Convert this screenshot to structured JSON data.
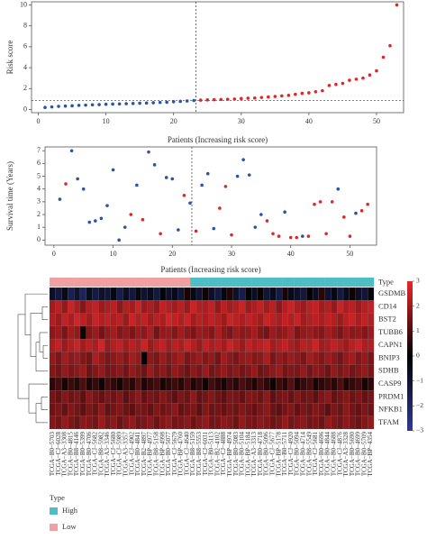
{
  "chart_data": [
    {
      "type": "scatter",
      "ylabel": "Risk score",
      "xlabel": "Patients (Increasing risk score)",
      "x": [
        1,
        2,
        3,
        4,
        5,
        6,
        7,
        8,
        9,
        10,
        11,
        12,
        13,
        14,
        15,
        16,
        17,
        18,
        19,
        20,
        21,
        22,
        23,
        24,
        25,
        26,
        27,
        28,
        29,
        30,
        31,
        32,
        33,
        34,
        35,
        36,
        37,
        38,
        39,
        40,
        41,
        42,
        43,
        44,
        45,
        46,
        47,
        48,
        49,
        50,
        51,
        52,
        53
      ],
      "values": [
        0.2,
        0.25,
        0.3,
        0.33,
        0.36,
        0.4,
        0.42,
        0.45,
        0.47,
        0.5,
        0.52,
        0.54,
        0.56,
        0.58,
        0.6,
        0.62,
        0.65,
        0.68,
        0.7,
        0.74,
        0.78,
        0.82,
        0.86,
        0.9,
        0.92,
        0.94,
        0.96,
        0.98,
        1.0,
        1.05,
        1.08,
        1.1,
        1.15,
        1.2,
        1.25,
        1.3,
        1.35,
        1.45,
        1.55,
        1.6,
        1.7,
        1.8,
        2.3,
        2.4,
        2.5,
        2.8,
        2.9,
        3.0,
        3.3,
        3.7,
        5.0,
        6.1,
        10.0
      ],
      "colors": [
        "#2b54a3",
        "#2b54a3",
        "#2b54a3",
        "#2b54a3",
        "#2b54a3",
        "#2b54a3",
        "#2b54a3",
        "#2b54a3",
        "#2b54a3",
        "#2b54a3",
        "#2b54a3",
        "#2b54a3",
        "#2b54a3",
        "#2b54a3",
        "#2b54a3",
        "#2b54a3",
        "#2b54a3",
        "#2b54a3",
        "#2b54a3",
        "#2b54a3",
        "#2b54a3",
        "#2b54a3",
        "#2b54a3",
        "#e0262b",
        "#e0262b",
        "#e0262b",
        "#e0262b",
        "#e0262b",
        "#e0262b",
        "#e0262b",
        "#e0262b",
        "#e0262b",
        "#e0262b",
        "#e0262b",
        "#e0262b",
        "#e0262b",
        "#e0262b",
        "#e0262b",
        "#e0262b",
        "#e0262b",
        "#e0262b",
        "#e0262b",
        "#e0262b",
        "#e0262b",
        "#e0262b",
        "#e0262b",
        "#e0262b",
        "#e0262b",
        "#e0262b",
        "#e0262b",
        "#e0262b",
        "#e0262b",
        "#e0262b"
      ],
      "xlim": [
        -1,
        54
      ],
      "ylim": [
        -0.3,
        10.3
      ],
      "xticks": [
        0,
        10,
        20,
        30,
        40,
        50
      ],
      "yticks": [
        0,
        2,
        4,
        6,
        8,
        10
      ],
      "vline": 23.3,
      "hline": 0.88
    },
    {
      "type": "scatter",
      "ylabel": "Survival time (Years)",
      "xlabel": "Patients (Increasing risk score)",
      "x": [
        1,
        2,
        3,
        4,
        5,
        6,
        7,
        8,
        9,
        10,
        11,
        12,
        13,
        14,
        15,
        16,
        17,
        18,
        19,
        20,
        21,
        22,
        23,
        24,
        25,
        26,
        27,
        28,
        29,
        30,
        31,
        32,
        33,
        34,
        35,
        36,
        37,
        38,
        39,
        40,
        41,
        42,
        43,
        44,
        45,
        46,
        47,
        48,
        49,
        50,
        51,
        52,
        53
      ],
      "values": [
        3.2,
        4.4,
        7.0,
        4.8,
        4.0,
        1.4,
        1.5,
        1.7,
        2.7,
        5.5,
        0.0,
        1.0,
        2.0,
        4.3,
        1.6,
        6.9,
        5.9,
        0.5,
        4.9,
        4.8,
        0.8,
        3.5,
        2.9,
        0.7,
        4.3,
        5.2,
        0.9,
        2.5,
        4.2,
        0.4,
        5.0,
        6.3,
        5.1,
        1.0,
        2.0,
        1.5,
        0.5,
        0.3,
        2.2,
        0.2,
        0.2,
        0.3,
        0.3,
        2.8,
        3.0,
        0.5,
        3.0,
        4.0,
        1.8,
        0.3,
        2.1,
        2.3,
        2.8
      ],
      "colors": [
        "#2b54a3",
        "#e0262b",
        "#2b54a3",
        "#2b54a3",
        "#2b54a3",
        "#2b54a3",
        "#2b54a3",
        "#2b54a3",
        "#2b54a3",
        "#2b54a3",
        "#2b54a3",
        "#2b54a3",
        "#e0262b",
        "#2b54a3",
        "#e0262b",
        "#2b54a3",
        "#2b54a3",
        "#e0262b",
        "#2b54a3",
        "#2b54a3",
        "#2b54a3",
        "#e0262b",
        "#2b54a3",
        "#e0262b",
        "#2b54a3",
        "#2b54a3",
        "#2b54a3",
        "#e0262b",
        "#e0262b",
        "#e0262b",
        "#2b54a3",
        "#2b54a3",
        "#2b54a3",
        "#2b54a3",
        "#2b54a3",
        "#e0262b",
        "#e0262b",
        "#e0262b",
        "#2b54a3",
        "#e0262b",
        "#e0262b",
        "#2b54a3",
        "#e0262b",
        "#e0262b",
        "#e0262b",
        "#e0262b",
        "#e0262b",
        "#2b54a3",
        "#e0262b",
        "#e0262b",
        "#2b54a3",
        "#e0262b",
        "#e0262b"
      ],
      "xlim": [
        -1.5,
        54.5
      ],
      "ylim": [
        -0.4,
        7.3
      ],
      "xticks": [
        0,
        10,
        20,
        30,
        40,
        50
      ],
      "yticks": [
        0,
        1,
        2,
        3,
        4,
        5,
        6,
        7
      ],
      "vline": 23.3
    },
    {
      "type": "heatmap",
      "annotation_title": "Type",
      "rows": [
        "GSDMB",
        "CD14",
        "BST2",
        "TUBB6",
        "CAPN1",
        "BNIP3",
        "SDHB",
        "CASP9",
        "PRDM1",
        "NFKB1",
        "TFAM"
      ],
      "columns": [
        "TCGA−B0−5703",
        "TCGA−CJ−6028",
        "TCGA−A3−3308",
        "TCGA−B0−4815",
        "TCGA−B8−4146",
        "TCGA−B0−5399",
        "TCGA−B0−4706",
        "TCGA−CJ−5682",
        "TCGA−B8−5982",
        "TCGA−A3−3346",
        "TCGA−CJ−5680",
        "TCGA−CJ−5989",
        "TCGA−A3−3357",
        "TCGA−CJ−4902",
        "TCGA−B0−4841",
        "TCGA−B2−4897",
        "TCGA−BP−4977",
        "TCGA−B8−5158",
        "TCGA−BP−4998",
        "TCGA−B0−5077",
        "TCGA−CJ−5679",
        "TCGA−BP−4760",
        "TCGA−CJ−4640",
        "TCGA−B8−5159",
        "TCGA−B8−5553",
        "TCGA−CJ−6031",
        "TCGA−B0−5113",
        "TCGA−B2−4102",
        "TCGA−CJ−4888",
        "TCGA−BP−4974",
        "TCGA−B0−5083",
        "TCGA−B0−5104",
        "TCGA−BP−5184",
        "TCGA−A3−3313",
        "TCGA−B0−4718",
        "TCGA−B0−5096",
        "TCGA−CJ−5677",
        "TCGA−BP−5178",
        "TCGA−B0−5711",
        "TCGA−CJ−4920",
        "TCGA−B0−5094",
        "TCGA−B0−4714",
        "TCGA−B8−5549",
        "TCGA−CJ−5681",
        "TCGA−B0−4696",
        "TCGA−B0−4844",
        "TCGA−B0−4688",
        "TCGA−CJ−4876",
        "TCGA−A3−3328",
        "TCGA−B0−5690",
        "TCGA−B0−4699",
        "TCGA−B0−5709",
        "TCGA−BP−4354"
      ],
      "column_type": [
        "Low",
        "Low",
        "Low",
        "Low",
        "Low",
        "Low",
        "Low",
        "Low",
        "Low",
        "Low",
        "Low",
        "Low",
        "Low",
        "Low",
        "Low",
        "Low",
        "Low",
        "Low",
        "Low",
        "Low",
        "Low",
        "Low",
        "Low",
        "High",
        "High",
        "High",
        "High",
        "High",
        "High",
        "High",
        "High",
        "High",
        "High",
        "High",
        "High",
        "High",
        "High",
        "High",
        "High",
        "High",
        "High",
        "High",
        "High",
        "High",
        "High",
        "High",
        "High",
        "High",
        "High",
        "High",
        "High",
        "High",
        "High"
      ],
      "type_legend": [
        {
          "name": "High",
          "color": "#4dbdc6"
        },
        {
          "name": "Low",
          "color": "#f0a0a0"
        }
      ],
      "values": [
        [
          -0.8,
          -1.2,
          -0.5,
          -1.6,
          -1.0,
          -1.8,
          -0.6,
          -1.4,
          -0.9,
          -1.1,
          -0.3,
          -1.5,
          -0.7,
          -1.2,
          -0.4,
          -1.0,
          -0.6,
          -1.3,
          -0.2,
          -0.9,
          -0.5,
          -1.1,
          0.3,
          -0.4,
          -1.0,
          0.2,
          -0.8,
          -1.3,
          -0.3,
          0.4,
          -0.9,
          -1.5,
          -0.2,
          -0.7,
          0.1,
          -1.1,
          -0.6,
          -1.4,
          0.3,
          -0.5,
          -0.9,
          -1.2,
          -0.1,
          -0.7,
          0.5,
          -1.0,
          -0.4,
          -1.3,
          -0.6,
          0.2,
          -0.8,
          -1.1,
          -0.3
        ],
        [
          2.1,
          2.4,
          1.9,
          2.6,
          2.2,
          1.7,
          2.3,
          2.5,
          2.0,
          2.2,
          2.4,
          1.8,
          2.3,
          2.1,
          2.6,
          2.0,
          2.2,
          1.9,
          2.5,
          2.3,
          2.1,
          2.4,
          2.0,
          2.6,
          2.3,
          2.2,
          2.5,
          1.9,
          2.4,
          2.1,
          2.3,
          2.6,
          2.0,
          2.2,
          2.5,
          2.1,
          2.4,
          1.8,
          2.3,
          2.6,
          2.2,
          2.0,
          2.4,
          2.5,
          2.1,
          2.3,
          1.9,
          2.6,
          2.2,
          2.4,
          2.0,
          2.3,
          2.5
        ],
        [
          2.3,
          2.0,
          2.5,
          2.2,
          2.7,
          2.4,
          2.1,
          2.6,
          2.3,
          2.5,
          2.2,
          2.4,
          2.0,
          2.6,
          2.3,
          2.5,
          2.1,
          2.4,
          2.2,
          2.7,
          2.5,
          2.3,
          2.6,
          2.1,
          2.4,
          2.2,
          2.5,
          2.3,
          2.0,
          2.6,
          2.4,
          2.2,
          2.5,
          2.3,
          2.1,
          2.6,
          2.4,
          2.2,
          2.5,
          2.3,
          2.6,
          2.1,
          2.3,
          2.4,
          2.2,
          2.5,
          2.3,
          2.0,
          2.4,
          2.6,
          2.2,
          2.5,
          2.3
        ],
        [
          1.8,
          2.0,
          1.6,
          2.1,
          1.9,
          0.2,
          1.7,
          2.0,
          1.5,
          1.9,
          2.1,
          1.7,
          1.9,
          1.6,
          2.0,
          1.8,
          2.2,
          1.5,
          1.9,
          2.0,
          1.7,
          2.1,
          1.8,
          1.6,
          2.0,
          1.9,
          1.7,
          2.2,
          1.8,
          1.6,
          2.0,
          1.8,
          1.9,
          2.1,
          1.7,
          1.5,
          2.0,
          1.8,
          1.9,
          2.2,
          1.6,
          1.9,
          2.0,
          1.8,
          1.7,
          2.1,
          1.9,
          1.6,
          2.0,
          1.8,
          1.9,
          1.7,
          2.0
        ],
        [
          2.2,
          2.5,
          2.0,
          2.3,
          2.6,
          2.1,
          2.4,
          2.2,
          2.7,
          2.0,
          2.3,
          2.5,
          2.1,
          2.4,
          2.2,
          2.6,
          2.0,
          2.3,
          2.5,
          2.1,
          2.4,
          2.2,
          2.6,
          2.3,
          2.0,
          2.5,
          2.2,
          2.4,
          2.1,
          2.6,
          2.3,
          2.0,
          2.5,
          2.2,
          2.4,
          2.6,
          2.1,
          2.3,
          2.5,
          2.2,
          2.0,
          2.4,
          2.3,
          2.6,
          2.1,
          2.2,
          2.5,
          2.3,
          2.0,
          2.4,
          2.6,
          2.2,
          2.3
        ],
        [
          1.9,
          1.6,
          2.1,
          1.8,
          2.0,
          1.7,
          1.5,
          2.2,
          1.9,
          1.6,
          1.8,
          2.0,
          1.7,
          2.1,
          1.9,
          0.1,
          1.8,
          1.6,
          2.0,
          1.7,
          1.9,
          2.1,
          1.6,
          1.8,
          2.0,
          1.7,
          1.9,
          1.5,
          2.1,
          1.8,
          1.6,
          1.9,
          2.0,
          1.7,
          1.8,
          2.2,
          1.6,
          1.9,
          1.7,
          2.0,
          1.8,
          1.6,
          2.1,
          1.9,
          1.7,
          2.0,
          1.8,
          1.5,
          1.9,
          2.1,
          1.7,
          1.9,
          1.6
        ],
        [
          1.7,
          1.5,
          1.9,
          1.6,
          1.8,
          2.0,
          1.4,
          1.7,
          1.9,
          1.5,
          1.6,
          1.8,
          1.5,
          1.9,
          1.7,
          1.4,
          2.0,
          1.6,
          1.8,
          1.5,
          1.9,
          1.7,
          1.4,
          1.8,
          1.6,
          2.0,
          1.5,
          1.7,
          1.9,
          1.6,
          1.8,
          1.5,
          1.7,
          1.9,
          1.4,
          1.6,
          1.8,
          2.0,
          1.5,
          1.7,
          1.6,
          1.9,
          1.5,
          1.8,
          1.7,
          1.4,
          1.9,
          1.6,
          1.8,
          1.5,
          1.7,
          1.9,
          1.6
        ],
        [
          0.6,
          0.9,
          0.3,
          0.8,
          0.5,
          1.0,
          0.4,
          0.7,
          0.2,
          0.9,
          0.6,
          0.3,
          0.8,
          0.5,
          1.1,
          0.4,
          0.7,
          0.9,
          0.3,
          0.6,
          0.8,
          0.5,
          1.0,
          0.4,
          0.7,
          0.2,
          0.9,
          0.6,
          0.3,
          0.8,
          0.5,
          1.0,
          0.7,
          0.4,
          0.9,
          0.6,
          0.2,
          0.8,
          0.5,
          1.1,
          0.4,
          0.7,
          0.9,
          0.3,
          0.6,
          0.8,
          0.5,
          1.0,
          0.4,
          0.7,
          0.9,
          0.3,
          0.6
        ],
        [
          1.5,
          1.3,
          1.7,
          1.4,
          1.6,
          1.2,
          1.8,
          1.5,
          1.3,
          1.6,
          1.4,
          1.7,
          1.2,
          1.5,
          1.8,
          1.3,
          1.6,
          1.4,
          1.7,
          1.5,
          1.2,
          1.6,
          1.4,
          1.8,
          1.3,
          1.5,
          1.7,
          1.4,
          1.2,
          1.6,
          1.5,
          1.3,
          1.7,
          1.6,
          1.4,
          1.8,
          1.2,
          1.5,
          1.6,
          1.3,
          1.7,
          1.4,
          1.5,
          1.2,
          1.6,
          1.8,
          1.3,
          1.5,
          1.7,
          1.4,
          1.6,
          1.3,
          1.5
        ],
        [
          1.4,
          1.6,
          1.3,
          1.7,
          1.5,
          1.2,
          1.6,
          1.4,
          1.8,
          1.3,
          1.5,
          1.7,
          1.4,
          1.2,
          1.6,
          1.5,
          1.3,
          1.7,
          1.4,
          1.6,
          1.8,
          1.3,
          1.5,
          1.6,
          1.2,
          1.7,
          1.4,
          1.5,
          1.3,
          1.6,
          1.4,
          1.7,
          1.5,
          1.3,
          1.6,
          1.8,
          1.4,
          1.2,
          1.5,
          1.7,
          1.3,
          1.6,
          1.4,
          1.7,
          1.5,
          1.2,
          1.6,
          1.4,
          1.8,
          1.5,
          1.3,
          1.6,
          1.4
        ],
        [
          1.7,
          1.5,
          1.9,
          1.6,
          1.4,
          1.8,
          1.7,
          1.5,
          2.0,
          1.6,
          1.8,
          1.4,
          1.7,
          1.9,
          1.5,
          1.6,
          1.8,
          1.4,
          1.7,
          1.9,
          1.5,
          1.6,
          1.8,
          1.4,
          1.7,
          1.9,
          1.5,
          1.6,
          1.8,
          1.7,
          1.4,
          1.9,
          1.6,
          1.5,
          1.8,
          1.7,
          1.4,
          1.6,
          1.9,
          1.5,
          1.7,
          1.8,
          1.5,
          1.6,
          1.4,
          1.9,
          1.7,
          1.5,
          1.8,
          1.6,
          1.4,
          1.7,
          1.9
        ]
      ],
      "clim": [
        -3,
        3
      ],
      "low_color": "#2e3a93",
      "mid_color": "#000000",
      "high_color": "#e8282b",
      "colorbar_ticks": [
        3,
        2,
        1,
        0,
        {
          "value": -1,
          "label": "−1"
        },
        {
          "value": -2,
          "label": "−2"
        },
        {
          "value": -3,
          "label": "−3"
        }
      ]
    }
  ]
}
